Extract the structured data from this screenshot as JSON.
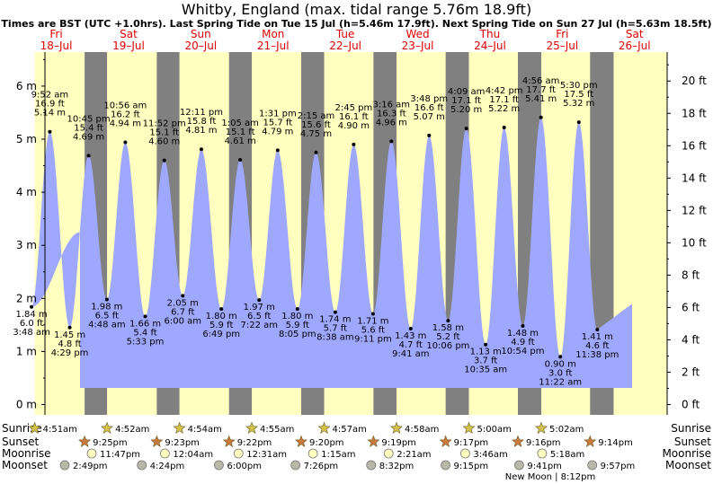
{
  "title": "Whitby, England (max. tidal range 5.76m 18.9ft)",
  "subtitle": "Times are BST (UTC +1.0hrs). Last Spring Tide on Tue 15 Jul (h=5.46m 17.9ft). Next Spring Tide on Sun 27 Jul (h=5.63m 18.5ft)",
  "colors": {
    "day": "#ffffc0",
    "night": "#808080",
    "tide": "#9fa8ff",
    "daytext": "#e00000"
  },
  "chart_data": {
    "type": "area",
    "y_left": {
      "unit": "m",
      "ylim": [
        -0.15,
        6.75
      ],
      "ticks": [
        0,
        1,
        2,
        3,
        4,
        5,
        6
      ],
      "tick_labels": [
        "0 m",
        "1 m",
        "2 m",
        "3 m",
        "4 m",
        "5 m",
        "6 m"
      ]
    },
    "y_right": {
      "unit": "ft",
      "ticks": [
        0,
        2,
        4,
        6,
        8,
        10,
        12,
        14,
        16,
        18,
        20
      ],
      "tick_labels": [
        "0 ft",
        "2 ft",
        "4 ft",
        "6 ft",
        "8 ft",
        "10 ft",
        "12 ft",
        "14 ft",
        "16 ft",
        "18 ft",
        "20 ft"
      ]
    },
    "days": [
      {
        "name": "Fri",
        "date": "18–Jul"
      },
      {
        "name": "Sat",
        "date": "19–Jul"
      },
      {
        "name": "Sun",
        "date": "20–Jul"
      },
      {
        "name": "Mon",
        "date": "21–Jul"
      },
      {
        "name": "Tue",
        "date": "22–Jul"
      },
      {
        "name": "Wed",
        "date": "23–Jul"
      },
      {
        "name": "Thu",
        "date": "24–Jul"
      },
      {
        "name": "Fri",
        "date": "25–Jul"
      },
      {
        "name": "Sat",
        "date": "26–Jul"
      }
    ],
    "tides": [
      {
        "day": 0,
        "t": 3.8,
        "type": "low",
        "m": "1.84 m",
        "ft": "6.0 ft",
        "time": "3:48 am",
        "h": 1.84
      },
      {
        "day": 0,
        "t": 9.87,
        "type": "high",
        "m": "5.14 m",
        "ft": "16.9 ft",
        "time": "9:52 am",
        "h": 5.14
      },
      {
        "day": 0,
        "t": 16.48,
        "type": "low",
        "m": "1.45 m",
        "ft": "4.8 ft",
        "time": "4:29 pm",
        "h": 1.45
      },
      {
        "day": 0,
        "t": 22.75,
        "type": "high",
        "m": "4.69 m",
        "ft": "15.4 ft",
        "time": "10:45 pm",
        "h": 4.69
      },
      {
        "day": 1,
        "t": 4.8,
        "type": "low",
        "m": "1.98 m",
        "ft": "6.5 ft",
        "time": "4:48 am",
        "h": 1.98
      },
      {
        "day": 1,
        "t": 10.93,
        "type": "high",
        "m": "4.94 m",
        "ft": "16.2 ft",
        "time": "10:56 am",
        "h": 4.94
      },
      {
        "day": 1,
        "t": 17.55,
        "type": "low",
        "m": "1.66 m",
        "ft": "5.4 ft",
        "time": "5:33 pm",
        "h": 1.66
      },
      {
        "day": 1,
        "t": 23.87,
        "type": "high",
        "m": "4.60 m",
        "ft": "15.1 ft",
        "time": "11:52 pm",
        "h": 4.6
      },
      {
        "day": 2,
        "t": 6.0,
        "type": "low",
        "m": "2.05 m",
        "ft": "6.7 ft",
        "time": "6:00 am",
        "h": 2.05
      },
      {
        "day": 2,
        "t": 12.18,
        "type": "high",
        "m": "4.81 m",
        "ft": "15.8 ft",
        "time": "12:11 pm",
        "h": 4.81
      },
      {
        "day": 2,
        "t": 18.82,
        "type": "low",
        "m": "1.80 m",
        "ft": "5.9 ft",
        "time": "6:49 pm",
        "h": 1.8
      },
      {
        "day": 3,
        "t": 1.08,
        "type": "high",
        "m": "4.61 m",
        "ft": "15.1 ft",
        "time": "1:05 am",
        "h": 4.61
      },
      {
        "day": 3,
        "t": 7.37,
        "type": "low",
        "m": "1.97 m",
        "ft": "6.5 ft",
        "time": "7:22 am",
        "h": 1.97
      },
      {
        "day": 3,
        "t": 13.52,
        "type": "high",
        "m": "4.79 m",
        "ft": "15.7 ft",
        "time": "1:31 pm",
        "h": 4.79
      },
      {
        "day": 3,
        "t": 20.08,
        "type": "low",
        "m": "1.80 m",
        "ft": "5.9 ft",
        "time": "8:05 pm",
        "h": 1.8
      },
      {
        "day": 4,
        "t": 2.25,
        "type": "high",
        "m": "4.75 m",
        "ft": "15.6 ft",
        "time": "2:15 am",
        "h": 4.75
      },
      {
        "day": 4,
        "t": 8.63,
        "type": "low",
        "m": "1.74 m",
        "ft": "5.7 ft",
        "time": "8:38 am",
        "h": 1.74
      },
      {
        "day": 4,
        "t": 14.75,
        "type": "high",
        "m": "4.90 m",
        "ft": "16.1 ft",
        "time": "2:45 pm",
        "h": 4.9
      },
      {
        "day": 4,
        "t": 21.18,
        "type": "low",
        "m": "1.71 m",
        "ft": "5.6 ft",
        "time": "9:11 pm",
        "h": 1.71
      },
      {
        "day": 5,
        "t": 3.27,
        "type": "high",
        "m": "4.96 m",
        "ft": "16.3 ft",
        "time": "3:16 am",
        "h": 4.96
      },
      {
        "day": 5,
        "t": 9.68,
        "type": "low",
        "m": "1.43 m",
        "ft": "4.7 ft",
        "time": "9:41 am",
        "h": 1.43
      },
      {
        "day": 5,
        "t": 15.8,
        "type": "high",
        "m": "5.07 m",
        "ft": "16.6 ft",
        "time": "3:48 pm",
        "h": 5.07
      },
      {
        "day": 5,
        "t": 22.1,
        "type": "low",
        "m": "1.58 m",
        "ft": "5.2 ft",
        "time": "10:06 pm",
        "h": 1.58
      },
      {
        "day": 6,
        "t": 4.15,
        "type": "high",
        "m": "5.20 m",
        "ft": "17.1 ft",
        "time": "4:09 am",
        "h": 5.2
      },
      {
        "day": 6,
        "t": 10.58,
        "type": "low",
        "m": "1.13 m",
        "ft": "3.7 ft",
        "time": "10:35 am",
        "h": 1.13
      },
      {
        "day": 6,
        "t": 16.7,
        "type": "high",
        "m": "5.22 m",
        "ft": "17.1 ft",
        "time": "4:42 pm",
        "h": 5.22
      },
      {
        "day": 6,
        "t": 22.9,
        "type": "low",
        "m": "1.48 m",
        "ft": "4.9 ft",
        "time": "10:54 pm",
        "h": 1.48
      },
      {
        "day": 7,
        "t": 4.93,
        "type": "high",
        "m": "5.41 m",
        "ft": "17.7 ft",
        "time": "4:56 am",
        "h": 5.41
      },
      {
        "day": 7,
        "t": 11.37,
        "type": "low",
        "m": "0.90 m",
        "ft": "3.0 ft",
        "time": "11:22 am",
        "h": 0.9
      },
      {
        "day": 7,
        "t": 17.5,
        "type": "high",
        "m": "5.32 m",
        "ft": "17.5 ft",
        "time": "5:30 pm",
        "h": 5.32
      },
      {
        "day": 7,
        "t": 23.63,
        "type": "low",
        "m": "1.41 m",
        "ft": "4.6 ft",
        "time": "11:38 pm",
        "h": 1.41
      }
    ],
    "sunrise": [
      {
        "day": 0,
        "t": 4.85,
        "label": "4:51am"
      },
      {
        "day": 1,
        "t": 4.87,
        "label": "4:52am"
      },
      {
        "day": 2,
        "t": 4.9,
        "label": "4:54am"
      },
      {
        "day": 3,
        "t": 4.92,
        "label": "4:55am"
      },
      {
        "day": 4,
        "t": 4.95,
        "label": "4:57am"
      },
      {
        "day": 5,
        "t": 4.97,
        "label": "4:58am"
      },
      {
        "day": 6,
        "t": 5.0,
        "label": "5:00am"
      },
      {
        "day": 7,
        "t": 5.03,
        "label": "5:02am"
      }
    ],
    "sunset": [
      {
        "day": 0,
        "t": 21.42,
        "label": "9:25pm"
      },
      {
        "day": 1,
        "t": 21.38,
        "label": "9:23pm"
      },
      {
        "day": 2,
        "t": 21.37,
        "label": "9:22pm"
      },
      {
        "day": 3,
        "t": 21.33,
        "label": "9:20pm"
      },
      {
        "day": 4,
        "t": 21.32,
        "label": "9:19pm"
      },
      {
        "day": 5,
        "t": 21.28,
        "label": "9:17pm"
      },
      {
        "day": 6,
        "t": 21.27,
        "label": "9:16pm"
      },
      {
        "day": 7,
        "t": 21.23,
        "label": "9:14pm"
      }
    ],
    "moonrise": [
      {
        "day": 0,
        "t": 23.78,
        "label": "11:47pm"
      },
      {
        "day": 2,
        "t": 0.07,
        "label": "12:04am"
      },
      {
        "day": 3,
        "t": 0.52,
        "label": "12:31am"
      },
      {
        "day": 4,
        "t": 1.25,
        "label": "1:15am"
      },
      {
        "day": 5,
        "t": 2.35,
        "label": "2:21am"
      },
      {
        "day": 6,
        "t": 3.77,
        "label": "3:46am"
      },
      {
        "day": 7,
        "t": 5.3,
        "label": "5:18am"
      }
    ],
    "moonset": [
      {
        "day": 0,
        "t": 14.82,
        "label": "2:49pm"
      },
      {
        "day": 1,
        "t": 16.4,
        "label": "4:24pm"
      },
      {
        "day": 2,
        "t": 18.0,
        "label": "6:00pm"
      },
      {
        "day": 3,
        "t": 19.43,
        "label": "7:26pm"
      },
      {
        "day": 4,
        "t": 20.53,
        "label": "8:32pm"
      },
      {
        "day": 5,
        "t": 21.25,
        "label": "9:15pm"
      },
      {
        "day": 6,
        "t": 21.68,
        "label": "9:41pm"
      },
      {
        "day": 7,
        "t": 21.95,
        "label": "9:57pm"
      }
    ],
    "row_labels": [
      "Sunrise",
      "Sunset",
      "Moonrise",
      "Moonset"
    ],
    "note": "New Moon | 8:12pm"
  }
}
